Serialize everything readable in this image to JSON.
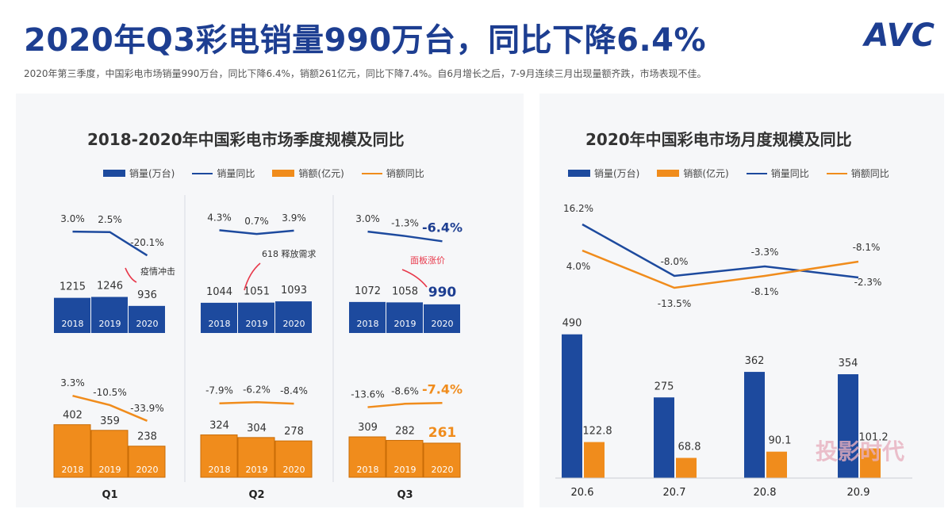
{
  "header": {
    "title": "2020年Q3彩电销量990万台，同比下降6.4%",
    "subtitle": "2020年第三季度，中国彩电市场销量990万台，同比下降6.4%，销额261亿元，同比下降7.4%。自6月增长之后，7-9月连续三月出现量额齐跌，市场表现不佳。",
    "logo": "AVC"
  },
  "colors": {
    "blue": "#1d4a9e",
    "orange": "#f08c1c",
    "highlight_blue": "#1d3e91",
    "highlight_orange": "#f08c1c",
    "arrow_red": "#e8394b"
  },
  "chart_data": [
    {
      "type": "bar",
      "title": "2018-2020年中国彩电市场季度规模及同比",
      "legend": [
        "销量(万台)",
        "销量同比",
        "销额(亿元)",
        "销额同比"
      ],
      "groups": [
        {
          "label": "Q1",
          "years": [
            "2018",
            "2019",
            "2020"
          ],
          "volume": [
            1215,
            1246,
            936
          ],
          "volume_yoy": [
            "3.0%",
            "2.5%",
            "-20.1%"
          ],
          "revenue": [
            402,
            359,
            238
          ],
          "revenue_yoy": [
            "3.3%",
            "-10.5%",
            "-33.9%"
          ],
          "annotation": "疫情冲击"
        },
        {
          "label": "Q2",
          "years": [
            "2018",
            "2019",
            "2020"
          ],
          "volume": [
            1044,
            1051,
            1093
          ],
          "volume_yoy": [
            "4.3%",
            "0.7%",
            "3.9%"
          ],
          "revenue": [
            324,
            304,
            278
          ],
          "revenue_yoy": [
            "-7.9%",
            "-6.2%",
            "-8.4%"
          ],
          "annotation": "618 释放需求"
        },
        {
          "label": "Q3",
          "years": [
            "2018",
            "2019",
            "2020"
          ],
          "volume": [
            1072,
            1058,
            990
          ],
          "volume_yoy": [
            "3.0%",
            "-1.3%",
            "-6.4%"
          ],
          "revenue": [
            309,
            282,
            261
          ],
          "revenue_yoy": [
            "-13.6%",
            "-8.6%",
            "-7.4%"
          ],
          "annotation": "面板涨价"
        }
      ]
    },
    {
      "type": "bar",
      "title": "2020年中国彩电市场月度规模及同比",
      "legend": [
        "销量(万台)",
        "销额(亿元)",
        "销量同比",
        "销额同比"
      ],
      "categories": [
        "20.6",
        "20.7",
        "20.8",
        "20.9"
      ],
      "series": [
        {
          "name": "销量(万台)",
          "values": [
            490,
            275,
            362,
            354
          ]
        },
        {
          "name": "销额(亿元)",
          "values": [
            122.8,
            68.8,
            90.1,
            101.2
          ]
        }
      ],
      "volume_yoy": [
        "16.2%",
        "-8.0%",
        "-3.3%",
        "-2.3%"
      ],
      "revenue_yoy": [
        "4.0%",
        "-13.5%",
        "-8.1%",
        "-8.1%"
      ],
      "revenue_labels": [
        "122.8",
        "68.8",
        "90.1",
        "101.2"
      ]
    }
  ],
  "watermark": "投影时代"
}
